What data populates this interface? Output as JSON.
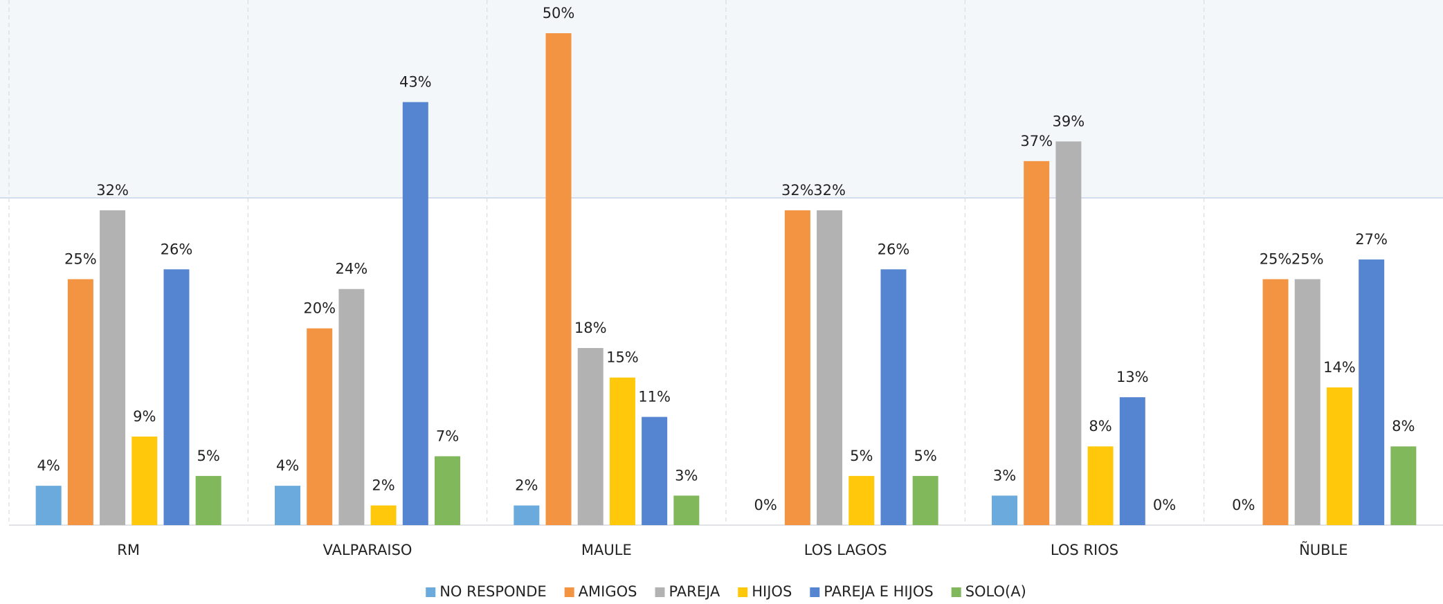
{
  "chart_data": {
    "type": "bar",
    "categories": [
      "RM",
      "VALPARAISO",
      "MAULE",
      "LOS LAGOS",
      "LOS RIOS",
      "ÑUBLE"
    ],
    "series": [
      {
        "name": "NO RESPONDE",
        "color": "#6aaadc",
        "values": [
          4,
          4,
          2,
          0,
          3,
          0
        ],
        "value_labels": [
          "4%",
          "4%",
          "2%",
          "0%",
          "3%",
          "0%"
        ]
      },
      {
        "name": "AMIGOS",
        "color": "#f29442",
        "values": [
          25,
          20,
          50,
          32,
          37,
          25
        ],
        "value_labels": [
          "25%",
          "20%",
          "50%",
          "32%",
          "37%",
          "25%"
        ]
      },
      {
        "name": "PAREJA",
        "color": "#b2b2b2",
        "values": [
          32,
          24,
          18,
          32,
          39,
          25
        ],
        "value_labels": [
          "32%",
          "24%",
          "18%",
          "32%",
          "39%",
          "25%"
        ]
      },
      {
        "name": "HIJOS",
        "color": "#ffc80a",
        "values": [
          9,
          2,
          15,
          5,
          8,
          14
        ],
        "value_labels": [
          "9%",
          "2%",
          "15%",
          "5%",
          "8%",
          "14%"
        ]
      },
      {
        "name": "PAREJA E HIJOS",
        "color": "#5585d0",
        "values": [
          26,
          43,
          11,
          26,
          13,
          27
        ],
        "value_labels": [
          "26%",
          "43%",
          "11%",
          "26%",
          "13%",
          "27%"
        ]
      },
      {
        "name": "SOLO(A)",
        "color": "#80b85b",
        "values": [
          5,
          7,
          3,
          5,
          0,
          8
        ],
        "value_labels": [
          "5%",
          "7%",
          "3%",
          "5%",
          "0%",
          "8%"
        ]
      }
    ],
    "legend": "bottom"
  }
}
